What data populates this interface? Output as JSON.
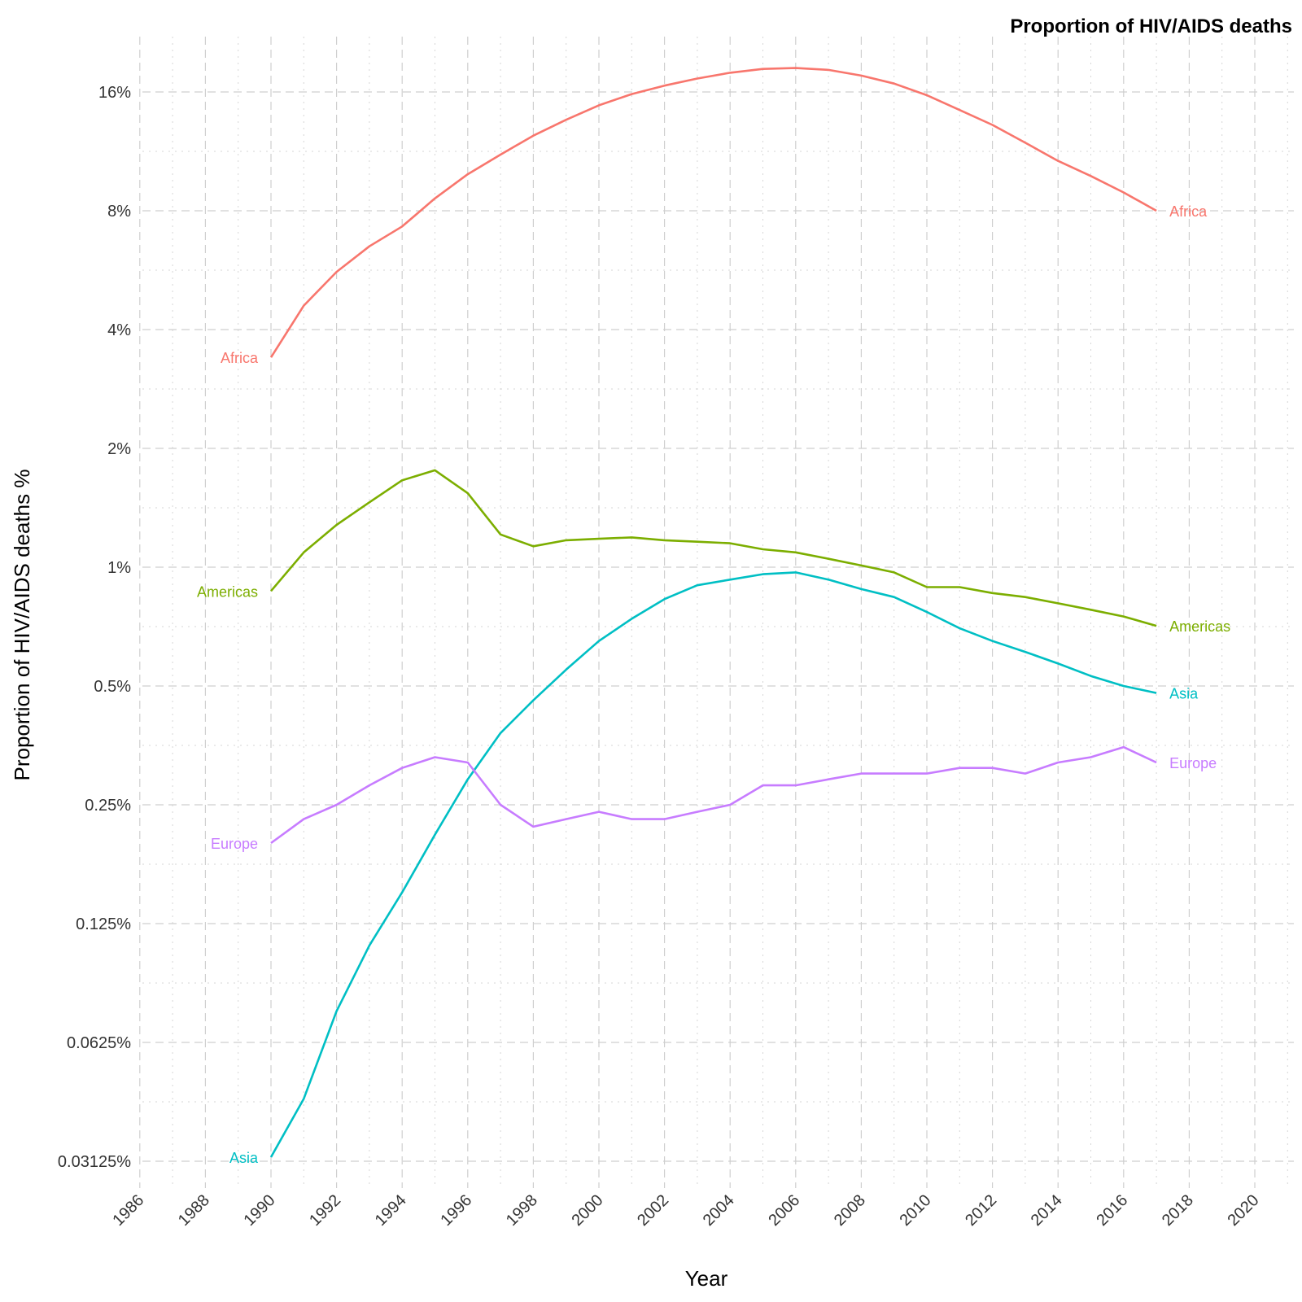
{
  "chart_data": {
    "type": "line",
    "title": "Proportion of HIV/AIDS deaths",
    "xlabel": "Year",
    "ylabel": "Proportion of HIV/AIDS deaths %",
    "x_scale": "linear",
    "y_scale": "log2",
    "xlim": [
      1986,
      2021
    ],
    "ylim": [
      0.022,
      22
    ],
    "x_ticks": [
      1986,
      1988,
      1990,
      1992,
      1994,
      1996,
      1998,
      2000,
      2002,
      2004,
      2006,
      2008,
      2010,
      2012,
      2014,
      2016,
      2018,
      2020
    ],
    "y_ticks": [
      0.03125,
      0.0625,
      0.125,
      0.25,
      0.5,
      1,
      2,
      4,
      8,
      16
    ],
    "y_tick_labels": [
      "0.03125%",
      "0.0625%",
      "0.125%",
      "0.25%",
      "0.5%",
      "1%",
      "2%",
      "4%",
      "8%",
      "16%"
    ],
    "grid": true,
    "legend": "none (series labeled at line ends)",
    "x": [
      1990,
      1991,
      1992,
      1993,
      1994,
      1995,
      1996,
      1997,
      1998,
      1999,
      2000,
      2001,
      2002,
      2003,
      2004,
      2005,
      2006,
      2007,
      2008,
      2009,
      2010,
      2011,
      2012,
      2013,
      2014,
      2015,
      2016,
      2017
    ],
    "series": [
      {
        "name": "Africa",
        "color": "#F8766D",
        "values": [
          3.4,
          4.6,
          5.6,
          6.5,
          7.3,
          8.6,
          9.9,
          11.1,
          12.4,
          13.6,
          14.8,
          15.8,
          16.6,
          17.3,
          17.9,
          18.3,
          18.4,
          18.2,
          17.6,
          16.8,
          15.7,
          14.4,
          13.2,
          11.9,
          10.7,
          9.8,
          8.9,
          8.0
        ]
      },
      {
        "name": "Americas",
        "color": "#7CAE00",
        "values": [
          0.87,
          1.09,
          1.28,
          1.46,
          1.66,
          1.76,
          1.54,
          1.21,
          1.13,
          1.17,
          1.18,
          1.19,
          1.17,
          1.16,
          1.15,
          1.11,
          1.09,
          1.05,
          1.01,
          0.97,
          0.89,
          0.89,
          0.86,
          0.84,
          0.81,
          0.78,
          0.75,
          0.71
        ]
      },
      {
        "name": "Asia",
        "color": "#00BFC4",
        "values": [
          0.032,
          0.045,
          0.075,
          0.11,
          0.15,
          0.21,
          0.29,
          0.38,
          0.46,
          0.55,
          0.65,
          0.74,
          0.83,
          0.9,
          0.93,
          0.96,
          0.97,
          0.93,
          0.88,
          0.84,
          0.77,
          0.7,
          0.65,
          0.61,
          0.57,
          0.53,
          0.5,
          0.48
        ]
      },
      {
        "name": "Europe",
        "color": "#C77CFF",
        "values": [
          0.2,
          0.23,
          0.25,
          0.28,
          0.31,
          0.33,
          0.32,
          0.25,
          0.22,
          0.23,
          0.24,
          0.23,
          0.23,
          0.24,
          0.25,
          0.28,
          0.28,
          0.29,
          0.3,
          0.3,
          0.3,
          0.31,
          0.31,
          0.3,
          0.32,
          0.33,
          0.35,
          0.32
        ]
      }
    ]
  }
}
